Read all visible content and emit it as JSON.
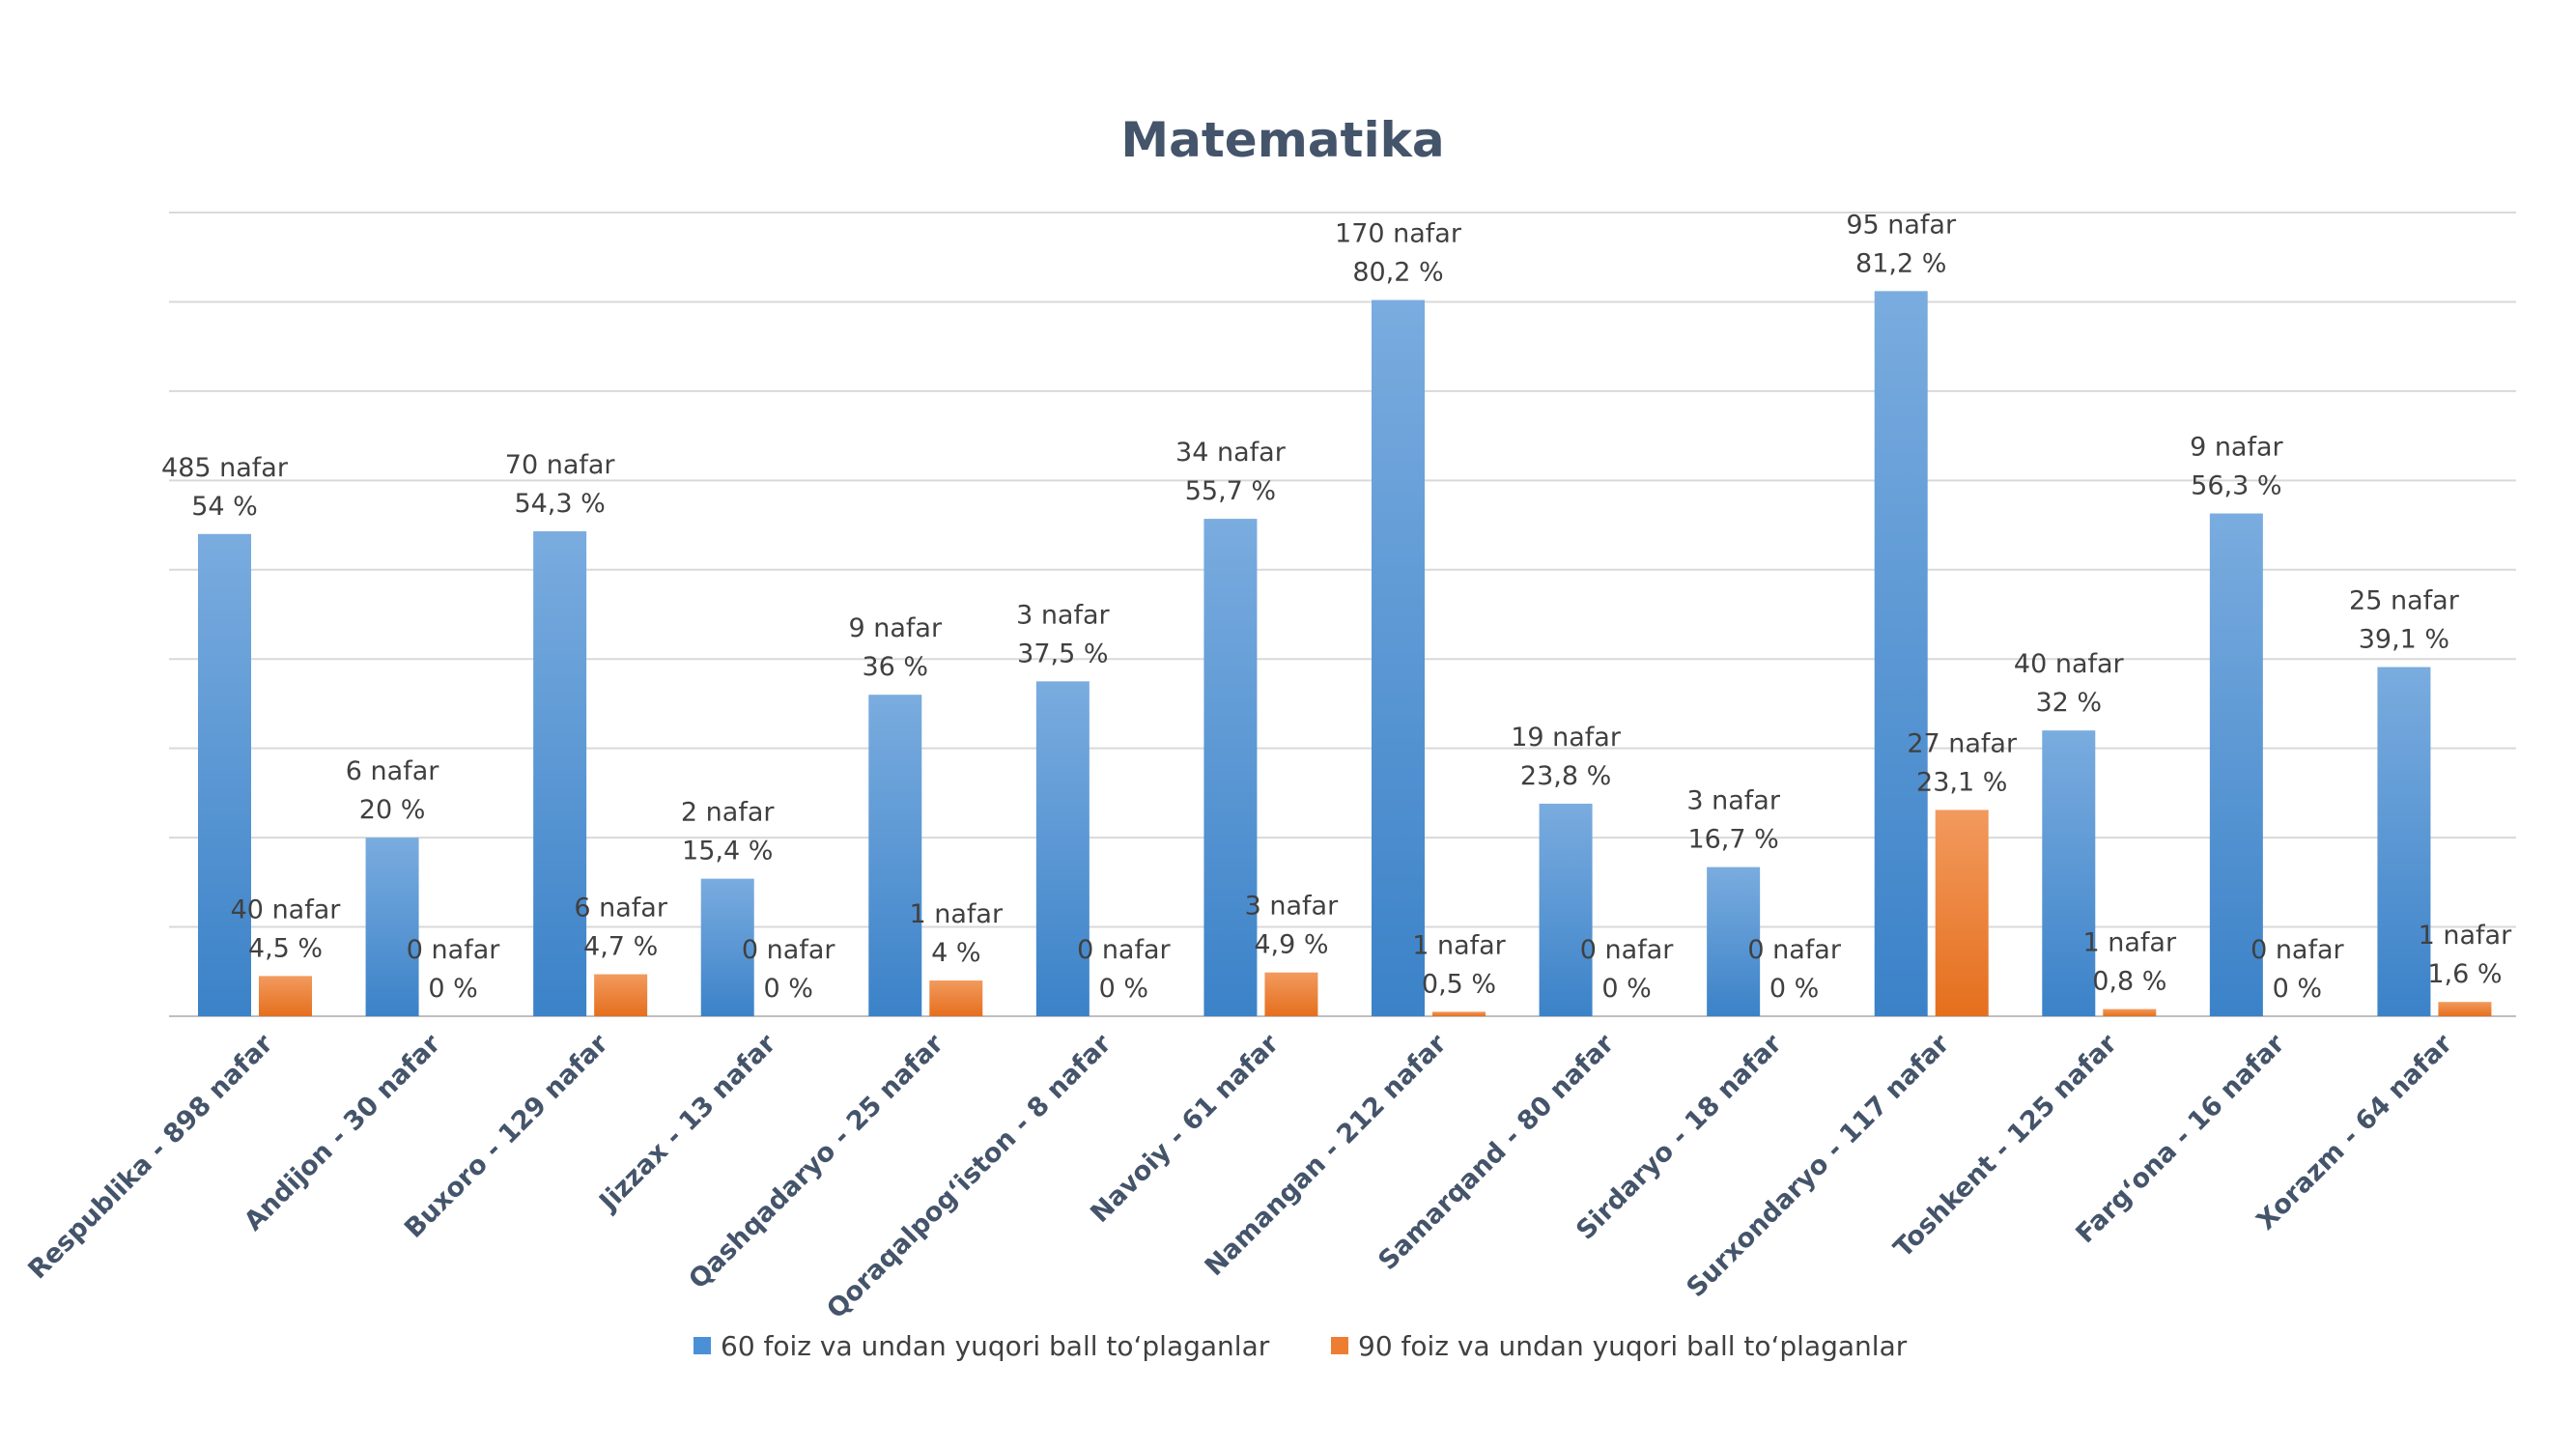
{
  "chart_data": {
    "type": "bar",
    "title": "Matematika",
    "xlabel": "",
    "ylabel": "",
    "ylim": [
      0,
      90
    ],
    "grid": true,
    "legend_position": "bottom",
    "categories": [
      "Respublika - 898 nafar",
      "Andijon - 30 nafar",
      "Buxoro - 129 nafar",
      "Jizzax - 13 nafar",
      "Qashqadaryo - 25 nafar",
      "Qoraqalpog‘iston - 8 nafar",
      "Navoiy - 61 nafar",
      "Namangan - 212 nafar",
      "Samarqand - 80 nafar",
      "Sirdaryo - 18 nafar",
      "Surxondaryo - 117 nafar",
      "Toshkent - 125 nafar",
      "Farg‘ona - 16 nafar",
      "Xorazm - 64 nafar"
    ],
    "series": [
      {
        "name": "60 foiz va undan yuqori ball to‘plaganlar",
        "color": "#4a90d6",
        "values": [
          54,
          20,
          54.3,
          15.4,
          36,
          37.5,
          55.7,
          80.2,
          23.8,
          16.7,
          81.2,
          32,
          56.3,
          39.1
        ],
        "counts": [
          "485 nafar",
          "6 nafar",
          "70 nafar",
          "2 nafar",
          "9 nafar",
          "3 nafar",
          "34 nafar",
          "170 nafar",
          "19 nafar",
          "3 nafar",
          "95 nafar",
          "40 nafar",
          "9 nafar",
          "25 nafar"
        ],
        "percent_labels": [
          "54 %",
          "20 %",
          "54,3 %",
          "15,4 %",
          "36 %",
          "37,5 %",
          "55,7 %",
          "80,2 %",
          "23,8 %",
          "16,7 %",
          "81,2 %",
          "32 %",
          "56,3 %",
          "39,1 %"
        ]
      },
      {
        "name": "90 foiz va undan yuqori ball to‘plaganlar",
        "color": "#ed7d31",
        "values": [
          4.5,
          0,
          4.7,
          0,
          4,
          0,
          4.9,
          0.5,
          0,
          0,
          23.1,
          0.8,
          0,
          1.6
        ],
        "counts": [
          "40 nafar",
          "0 nafar",
          "6 nafar",
          "0 nafar",
          "1 nafar",
          "0 nafar",
          "3 nafar",
          "1 nafar",
          "0 nafar",
          "0 nafar",
          "27 nafar",
          "1 nafar",
          "0 nafar",
          "1 nafar"
        ],
        "percent_labels": [
          "4,5 %",
          "0 %",
          "4,7 %",
          "0 %",
          "4 %",
          "0 %",
          "4,9 %",
          "0,5 %",
          "0 %",
          "0 %",
          "23,1 %",
          "0,8 %",
          "0 %",
          "1,6 %"
        ]
      }
    ]
  }
}
